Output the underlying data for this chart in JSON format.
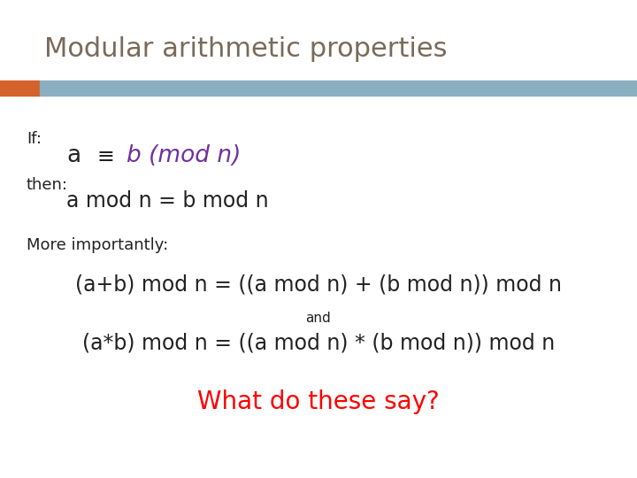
{
  "title": "Modular arithmetic properties",
  "title_color": "#7a6a5a",
  "title_fontsize": 22,
  "bg_color": "#ffffff",
  "header_bar_color": "#8aafc0",
  "header_accent_color": "#d4622a",
  "line1_label": "If:",
  "line1_eq_plain": "a",
  "line1_eq_symbol": "≡",
  "line1_eq_italic": "b (mod n)",
  "line1_italic_color": "#7030a0",
  "line2_label": "then:",
  "line2_eq": "a mod n = b mod n",
  "line3_label": "More importantly:",
  "line4_eq": "(a+b) mod n = ((a mod n) + (b mod n)) mod n",
  "line5_and": "and",
  "line6_eq": "(a*b) mod n = ((a mod n) * (b mod n)) mod n",
  "line7_eq": "What do these say?",
  "line7_color": "#ff0000",
  "text_color": "#222222",
  "label_fontsize": 13,
  "body_fontsize": 15,
  "body_large_fontsize": 17,
  "small_fontsize": 11
}
